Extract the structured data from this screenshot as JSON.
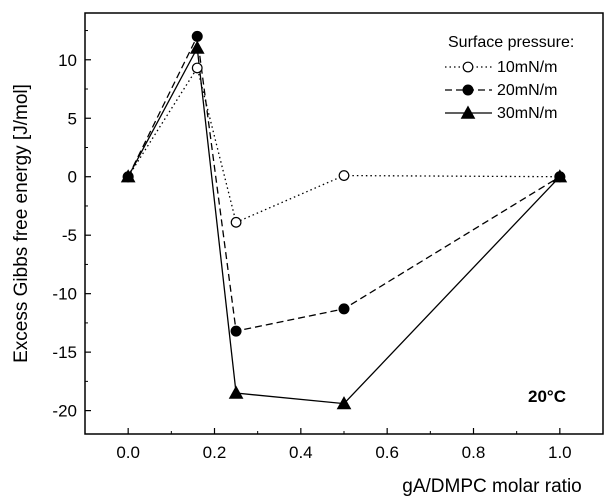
{
  "chart_data": {
    "type": "line",
    "xlabel": "gA/DMPC molar ratio",
    "ylabel": "Excess Gibbs free energy [J/mol]",
    "xlim": [
      -0.1,
      1.1
    ],
    "ylim": [
      -22,
      14
    ],
    "x_ticks": [
      0.0,
      0.2,
      0.4,
      0.6,
      0.8,
      1.0
    ],
    "x_tick_labels": [
      "0.0",
      "0.2",
      "0.4",
      "0.6",
      "0.8",
      "1.0"
    ],
    "y_ticks": [
      10,
      5,
      0,
      -5,
      -10,
      -15,
      -20
    ],
    "y_tick_labels": [
      "10",
      "5",
      "0",
      "-5",
      "-10",
      "-15",
      "-20"
    ],
    "grid": false,
    "legend": {
      "title": "Surface pressure:",
      "placement": "top-right"
    },
    "annotation": "20°C",
    "series": [
      {
        "name": "10mN/m",
        "marker": "open-circle",
        "line_style": "dotted",
        "x": [
          0.0,
          0.16,
          0.25,
          0.5,
          1.0
        ],
        "y": [
          0.0,
          9.3,
          -3.9,
          0.1,
          0.0
        ]
      },
      {
        "name": "20mN/m",
        "marker": "filled-circle",
        "line_style": "dashed",
        "x": [
          0.0,
          0.16,
          0.25,
          0.5,
          1.0
        ],
        "y": [
          0.0,
          12.0,
          -13.2,
          -11.3,
          0.0
        ]
      },
      {
        "name": "30mN/m",
        "marker": "filled-triangle",
        "line_style": "solid",
        "x": [
          0.0,
          0.16,
          0.25,
          0.5,
          1.0
        ],
        "y": [
          0.0,
          11.0,
          -18.5,
          -19.4,
          0.0
        ]
      }
    ],
    "colors": {
      "axis": "#000000",
      "line": "#000000",
      "marker_fill": "#000000",
      "open_marker_fill": "#ffffff"
    }
  }
}
